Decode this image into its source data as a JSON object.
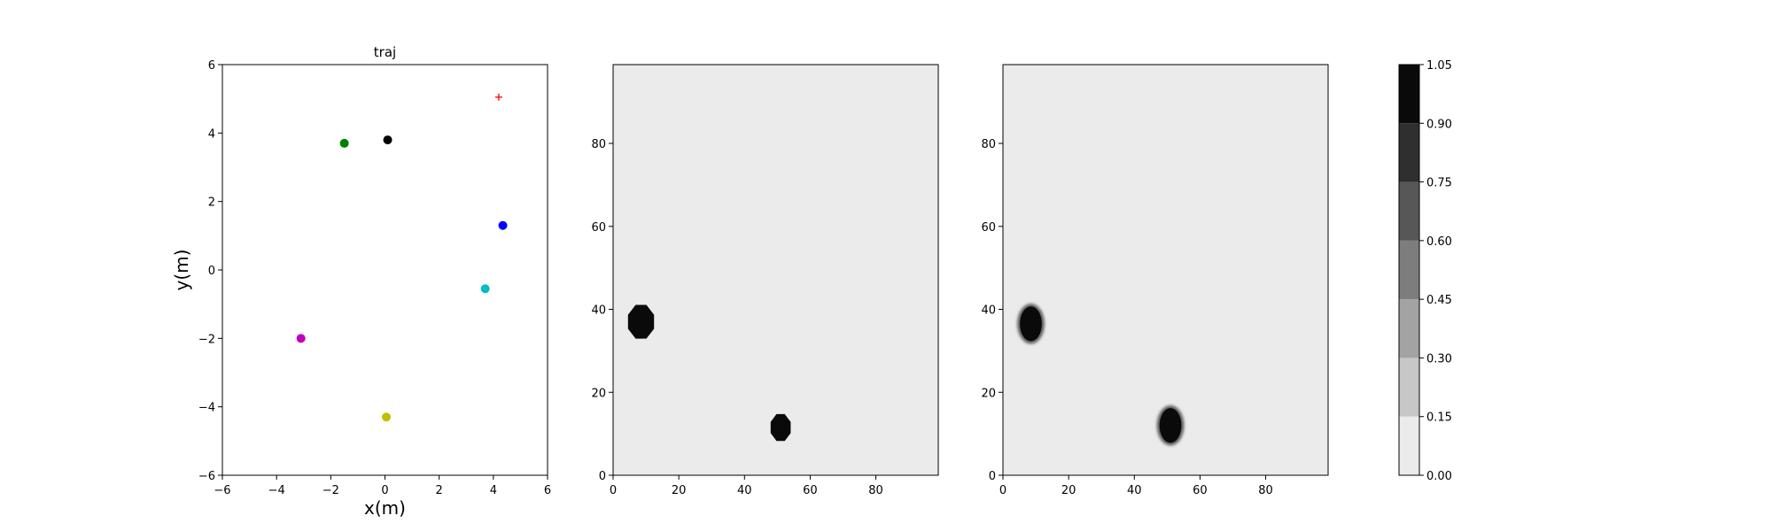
{
  "chart_data": [
    {
      "type": "scatter",
      "title": "traj",
      "xlabel": "x(m)",
      "ylabel": "y(m)",
      "xlim": [
        -6,
        6
      ],
      "ylim": [
        -6,
        6
      ],
      "xticks": [
        -6,
        -4,
        -2,
        0,
        2,
        4,
        6
      ],
      "yticks": [
        -6,
        -4,
        -2,
        0,
        2,
        4,
        6
      ],
      "grid": false,
      "points": [
        {
          "x": -1.5,
          "y": 3.7,
          "color": "#008000",
          "marker": "circle"
        },
        {
          "x": 0.1,
          "y": 3.8,
          "color": "#000000",
          "marker": "circle"
        },
        {
          "x": 4.35,
          "y": 1.3,
          "color": "#0000ff",
          "marker": "circle"
        },
        {
          "x": 3.7,
          "y": -0.55,
          "color": "#00bfbf",
          "marker": "circle"
        },
        {
          "x": -3.1,
          "y": -2.0,
          "color": "#bf00bf",
          "marker": "circle"
        },
        {
          "x": 0.05,
          "y": -4.3,
          "color": "#bfbf00",
          "marker": "circle"
        },
        {
          "x": 4.2,
          "y": 5.05,
          "color": "#ff0000",
          "marker": "plus"
        }
      ]
    },
    {
      "type": "heatmap",
      "title": "",
      "xlim": [
        0,
        99
      ],
      "ylim": [
        0,
        99
      ],
      "xticks": [
        0,
        20,
        40,
        60,
        80
      ],
      "yticks": [
        0,
        20,
        40,
        60,
        80
      ],
      "background_value": 0.0,
      "blobs": [
        {
          "cx": 8.5,
          "cy": 37,
          "rx": 4.3,
          "ry": 4.4,
          "value": 1.0,
          "shape": "octagon"
        },
        {
          "cx": 51,
          "cy": 11.5,
          "rx": 3.3,
          "ry": 3.5,
          "value": 1.0,
          "shape": "octagon"
        }
      ]
    },
    {
      "type": "heatmap",
      "title": "",
      "xlim": [
        0,
        99
      ],
      "ylim": [
        0,
        99
      ],
      "xticks": [
        0,
        20,
        40,
        60,
        80
      ],
      "yticks": [
        0,
        20,
        40,
        60,
        80
      ],
      "background_value": 0.0,
      "blobs": [
        {
          "cx": 8.5,
          "cy": 36.5,
          "rx": 3.6,
          "ry": 4.4,
          "value": 1.0,
          "shape": "ellipse"
        },
        {
          "cx": 51,
          "cy": 12,
          "rx": 3.6,
          "ry": 4.4,
          "value": 1.0,
          "shape": "ellipse"
        }
      ]
    }
  ],
  "colorbar": {
    "levels": [
      "0.00",
      "0.15",
      "0.30",
      "0.45",
      "0.60",
      "0.75",
      "0.90",
      "1.05"
    ],
    "colors": [
      "#ebebeb",
      "#c7c7c7",
      "#a3a3a3",
      "#7d7d7d",
      "#575757",
      "#2f2f2f",
      "#0a0a0a"
    ]
  }
}
